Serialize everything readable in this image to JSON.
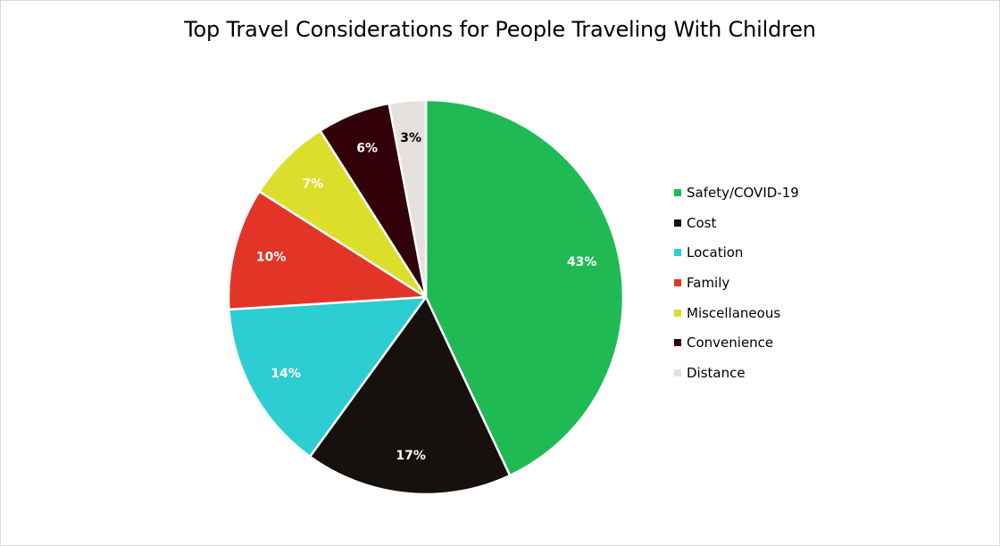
{
  "chart_data": {
    "type": "pie",
    "title": "Top Travel Considerations for People Traveling With Children",
    "legend_position": "right",
    "slices": [
      {
        "label": "Safety/COVID-19",
        "value": 43,
        "display": "43%",
        "color": "#20BA55",
        "label_color": "#ffffff"
      },
      {
        "label": "Cost",
        "value": 17,
        "display": "17%",
        "color": "#16110F",
        "label_color": "#ffffff"
      },
      {
        "label": "Location",
        "value": 14,
        "display": "14%",
        "color": "#2CCDD3",
        "label_color": "#ffffff"
      },
      {
        "label": "Family",
        "value": 10,
        "display": "10%",
        "color": "#E23527",
        "label_color": "#ffffff"
      },
      {
        "label": "Miscellaneous",
        "value": 7,
        "display": "7%",
        "color": "#DDDD2C",
        "label_color": "#ffffff"
      },
      {
        "label": "Convenience",
        "value": 6,
        "display": "6%",
        "color": "#320008",
        "label_color": "#ffffff"
      },
      {
        "label": "Distance",
        "value": 3,
        "display": "3%",
        "color": "#E4E1DF",
        "label_color": "#000000"
      }
    ]
  }
}
